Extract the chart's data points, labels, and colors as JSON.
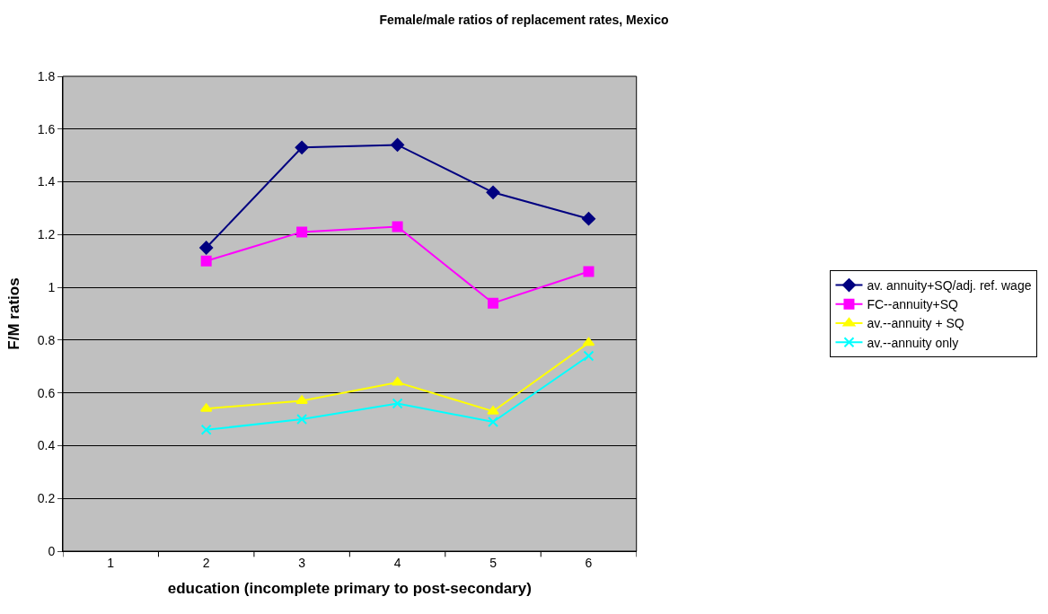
{
  "chart_data": {
    "type": "line",
    "title": "Female/male ratios of replacement rates, Mexico",
    "xlabel": "education (incomplete primary to post-secondary)",
    "ylabel": "F/M ratios",
    "categories": [
      "1",
      "2",
      "3",
      "4",
      "5",
      "6"
    ],
    "series": [
      {
        "name": "av. annuity+SQ/adj. ref. wage",
        "color": "#000080",
        "marker": "diamond",
        "values": [
          null,
          1.15,
          1.53,
          1.54,
          1.36,
          1.26
        ]
      },
      {
        "name": "FC--annuity+SQ",
        "color": "#ff00ff",
        "marker": "square",
        "values": [
          null,
          1.1,
          1.21,
          1.23,
          0.94,
          1.06
        ]
      },
      {
        "name": "av.--annuity + SQ",
        "color": "#ffff00",
        "marker": "triangle",
        "values": [
          null,
          0.54,
          0.57,
          0.64,
          0.53,
          0.79
        ]
      },
      {
        "name": "av.--annuity only",
        "color": "#00ffff",
        "marker": "cross",
        "values": [
          null,
          0.46,
          0.5,
          0.56,
          0.49,
          0.74
        ]
      }
    ],
    "ylim": [
      0,
      1.8
    ],
    "yticks": [
      0,
      0.2,
      0.4,
      0.6,
      0.8,
      1,
      1.2,
      1.4,
      1.6,
      1.8
    ],
    "grid": "y",
    "legend": "right",
    "line_style": "solid"
  }
}
